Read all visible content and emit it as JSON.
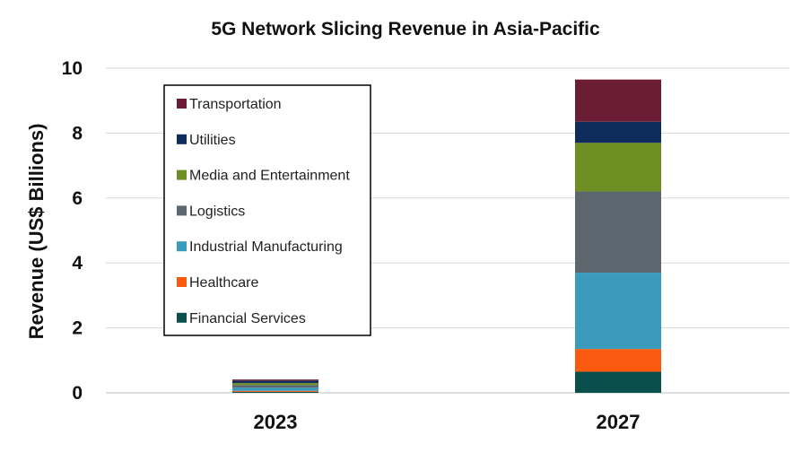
{
  "chart_data": {
    "type": "bar",
    "stacked": true,
    "title": "5G Network Slicing Revenue in Asia-Pacific",
    "xlabel": "",
    "ylabel": "Revenue (US$ Billions)",
    "categories": [
      "2023",
      "2027"
    ],
    "ylim": [
      0,
      10
    ],
    "yticks": [
      0,
      2,
      4,
      6,
      8,
      10
    ],
    "grid": true,
    "legend_position": "top-left",
    "series": [
      {
        "name": "Financial Services",
        "color": "#0b4f4c",
        "values": [
          0.03,
          0.65
        ]
      },
      {
        "name": "Healthcare",
        "color": "#fa5a0f",
        "values": [
          0.03,
          0.7
        ]
      },
      {
        "name": "Industrial Manufacturing",
        "color": "#3a9bbd",
        "values": [
          0.1,
          2.35
        ]
      },
      {
        "name": "Logistics",
        "color": "#5c6770",
        "values": [
          0.08,
          2.5
        ]
      },
      {
        "name": "Media and Entertainment",
        "color": "#6c8e23",
        "values": [
          0.06,
          1.5
        ]
      },
      {
        "name": "Utilities",
        "color": "#0f2d5c",
        "values": [
          0.07,
          0.65
        ]
      },
      {
        "name": "Transportation",
        "color": "#6b1d35",
        "values": [
          0.04,
          1.3
        ]
      }
    ]
  }
}
